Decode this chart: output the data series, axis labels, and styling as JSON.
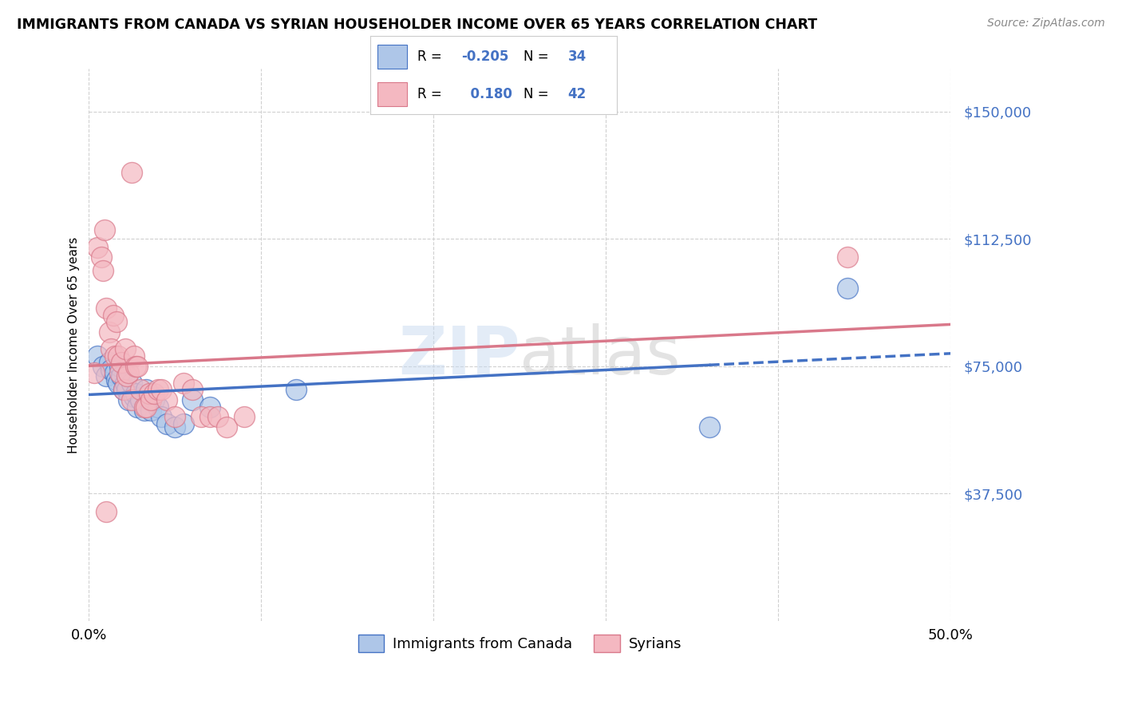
{
  "title": "IMMIGRANTS FROM CANADA VS SYRIAN HOUSEHOLDER INCOME OVER 65 YEARS CORRELATION CHART",
  "source": "Source: ZipAtlas.com",
  "ylabel": "Householder Income Over 65 years",
  "ytick_labels": [
    "$37,500",
    "$75,000",
    "$112,500",
    "$150,000"
  ],
  "ytick_values": [
    37500,
    75000,
    112500,
    150000
  ],
  "ylim": [
    0,
    162500
  ],
  "xlim": [
    0,
    0.5
  ],
  "background_color": "#ffffff",
  "grid_color": "#d0d0d0",
  "trend_canada_color": "#4472c4",
  "trend_syrian_color": "#d9788a",
  "canada_scatter_color": "#aec6e8",
  "syrian_scatter_color": "#f4b8c1",
  "canada_edge_color": "#4472c4",
  "syrian_edge_color": "#d9788a",
  "canada_R": "-0.205",
  "canada_N": "34",
  "syrian_R": "0.180",
  "syrian_N": "42",
  "canada_points_x": [
    0.005,
    0.008,
    0.01,
    0.012,
    0.013,
    0.015,
    0.016,
    0.017,
    0.018,
    0.019,
    0.02,
    0.021,
    0.022,
    0.023,
    0.025,
    0.026,
    0.027,
    0.028,
    0.03,
    0.032,
    0.033,
    0.035,
    0.036,
    0.038,
    0.04,
    0.042,
    0.045,
    0.05,
    0.055,
    0.06,
    0.07,
    0.12,
    0.36,
    0.44
  ],
  "canada_points_y": [
    78000,
    75000,
    72000,
    76000,
    74000,
    73000,
    71000,
    70000,
    75000,
    72000,
    68000,
    70000,
    68000,
    65000,
    70000,
    66000,
    67000,
    63000,
    65000,
    62000,
    68000,
    65000,
    62000,
    65000,
    63000,
    60000,
    58000,
    57000,
    58000,
    65000,
    63000,
    68000,
    57000,
    98000
  ],
  "syrian_points_x": [
    0.003,
    0.005,
    0.007,
    0.008,
    0.009,
    0.01,
    0.012,
    0.013,
    0.014,
    0.015,
    0.016,
    0.017,
    0.018,
    0.019,
    0.02,
    0.021,
    0.022,
    0.023,
    0.025,
    0.026,
    0.027,
    0.028,
    0.03,
    0.032,
    0.033,
    0.035,
    0.036,
    0.038,
    0.04,
    0.042,
    0.045,
    0.05,
    0.055,
    0.06,
    0.065,
    0.07,
    0.075,
    0.08,
    0.09,
    0.025,
    0.44,
    0.01
  ],
  "syrian_points_y": [
    73000,
    110000,
    107000,
    103000,
    115000,
    92000,
    85000,
    80000,
    90000,
    78000,
    88000,
    78000,
    73000,
    76000,
    68000,
    80000,
    72000,
    73000,
    65000,
    78000,
    75000,
    75000,
    68000,
    63000,
    63000,
    67000,
    65000,
    67000,
    68000,
    68000,
    65000,
    60000,
    70000,
    68000,
    60000,
    60000,
    60000,
    57000,
    60000,
    132000,
    107000,
    32000
  ]
}
